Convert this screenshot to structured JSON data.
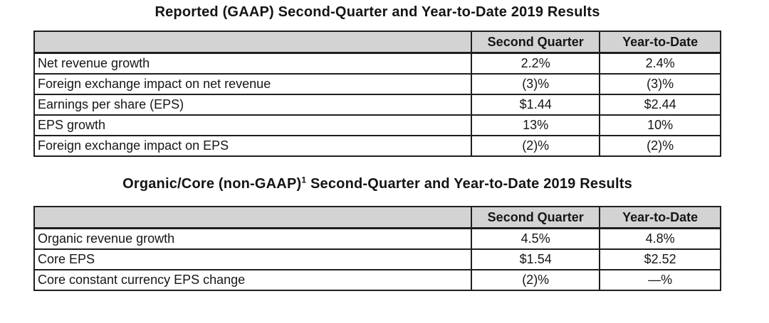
{
  "colors": {
    "header_bg": "#d3d3d3",
    "border": "#1f1f1f",
    "text": "#161616",
    "page_bg": "#ffffff"
  },
  "tables": [
    {
      "title": "Reported (GAAP) Second-Quarter and Year-to-Date 2019 Results",
      "columns": {
        "metric": "",
        "second_quarter": "Second Quarter",
        "year_to_date": "Year-to-Date"
      },
      "rows": [
        {
          "label": "Net revenue growth",
          "q2": "2.2%",
          "ytd": "2.4%"
        },
        {
          "label": "Foreign exchange impact on net revenue",
          "q2": "(3)%",
          "ytd": "(3)%"
        },
        {
          "label": "Earnings per share (EPS)",
          "q2": "$1.44",
          "ytd": "$2.44"
        },
        {
          "label": "EPS growth",
          "q2": "13%",
          "ytd": "10%"
        },
        {
          "label": "Foreign exchange impact on EPS",
          "q2": "(2)%",
          "ytd": "(2)%"
        }
      ]
    },
    {
      "title_prefix": "Organic/Core (non-GAAP)",
      "title_footnote": "1",
      "title_suffix": " Second-Quarter and Year-to-Date 2019 Results",
      "columns": {
        "metric": "",
        "second_quarter": "Second Quarter",
        "year_to_date": "Year-to-Date"
      },
      "rows": [
        {
          "label": "Organic revenue growth",
          "q2": "4.5%",
          "ytd": "4.8%"
        },
        {
          "label": "Core EPS",
          "q2": "$1.54",
          "ytd": "$2.52"
        },
        {
          "label": "Core constant currency EPS change",
          "q2": "(2)%",
          "ytd": "—%"
        }
      ]
    }
  ]
}
